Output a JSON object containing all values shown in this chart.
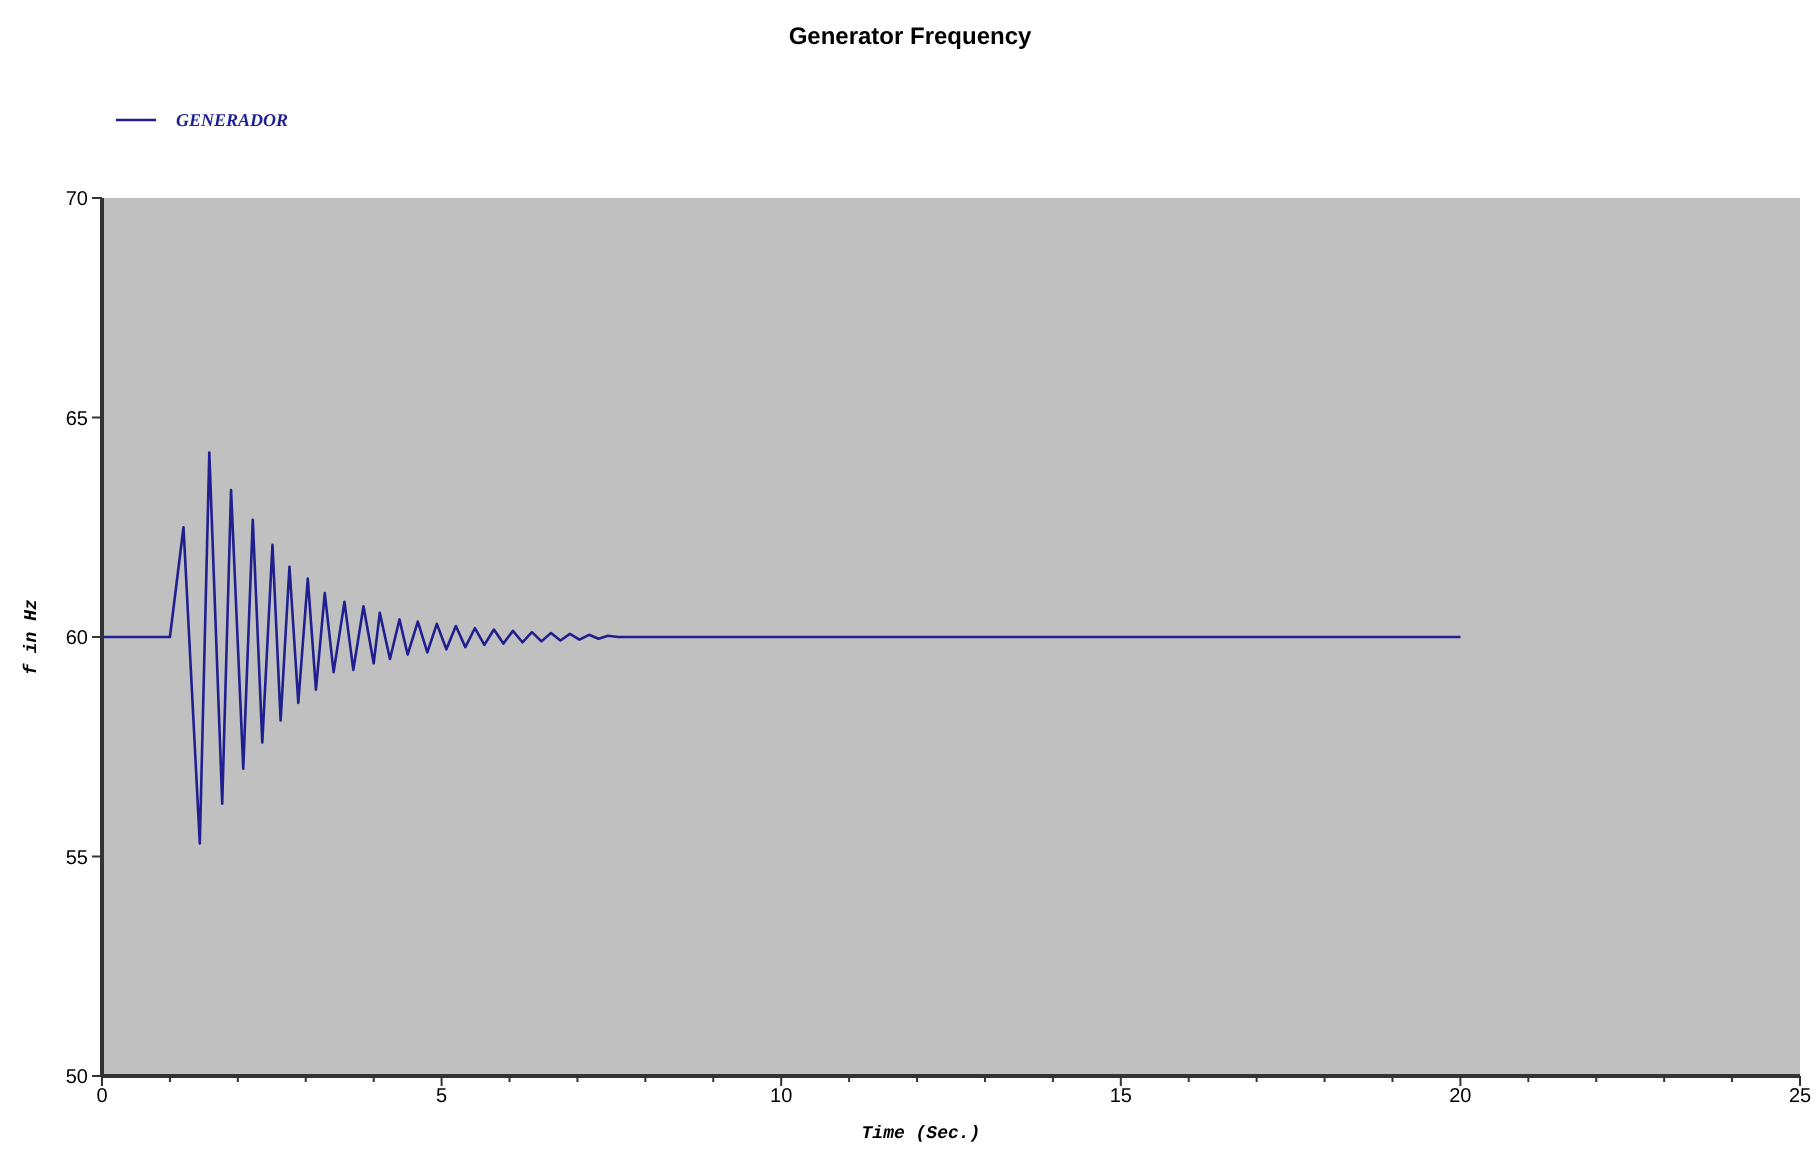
{
  "chart_data": {
    "type": "line",
    "title": "Generator Frequency",
    "xlabel": "Time  (Sec.)",
    "ylabel": "f in Hz",
    "xlim": [
      0,
      25
    ],
    "ylim": [
      50,
      70
    ],
    "xticks": [
      0,
      {
        "value": 1,
        "label": null
      },
      {
        "value": 2,
        "label": null
      },
      {
        "value": 3,
        "label": null
      },
      {
        "value": 4,
        "label": null
      },
      5,
      {
        "value": 6,
        "label": null
      },
      {
        "value": 7,
        "label": null
      },
      {
        "value": 8,
        "label": null
      },
      {
        "value": 9,
        "label": null
      },
      10,
      {
        "value": 11,
        "label": null
      },
      {
        "value": 12,
        "label": null
      },
      {
        "value": 13,
        "label": null
      },
      {
        "value": 14,
        "label": null
      },
      15,
      {
        "value": 16,
        "label": null
      },
      {
        "value": 17,
        "label": null
      },
      {
        "value": 18,
        "label": null
      },
      {
        "value": 19,
        "label": null
      },
      20,
      {
        "value": 21,
        "label": null
      },
      {
        "value": 22,
        "label": null
      },
      {
        "value": 23,
        "label": null
      },
      {
        "value": 24,
        "label": null
      },
      25
    ],
    "yticks": [
      50,
      55,
      60,
      65,
      70
    ],
    "grid": false,
    "legend": "top left",
    "marker": "none",
    "line_style": "solid",
    "series": [
      {
        "name": "GENERADOR",
        "color": "#1f1f8f",
        "x": [
          0,
          1.0,
          1.2,
          1.44,
          1.58,
          1.77,
          1.9,
          2.08,
          2.22,
          2.36,
          2.51,
          2.63,
          2.76,
          2.89,
          3.03,
          3.15,
          3.28,
          3.41,
          3.57,
          3.7,
          3.85,
          4.0,
          4.09,
          4.24,
          4.38,
          4.5,
          4.65,
          4.79,
          4.93,
          5.07,
          5.21,
          5.35,
          5.49,
          5.63,
          5.77,
          5.91,
          6.05,
          6.19,
          6.33,
          6.47,
          6.61,
          6.75,
          6.89,
          7.03,
          7.17,
          7.31,
          7.45,
          7.6,
          20
        ],
        "values": [
          60,
          60,
          62.5,
          55.3,
          64.2,
          56.2,
          63.35,
          57.0,
          62.67,
          57.6,
          62.1,
          58.1,
          61.6,
          58.5,
          61.33,
          58.8,
          61.0,
          59.2,
          60.8,
          59.25,
          60.7,
          59.4,
          60.55,
          59.5,
          60.4,
          59.6,
          60.35,
          59.65,
          60.3,
          59.72,
          60.25,
          59.77,
          60.2,
          59.82,
          60.17,
          59.85,
          60.14,
          59.88,
          60.11,
          59.9,
          60.09,
          59.92,
          60.07,
          59.94,
          60.05,
          59.96,
          60.03,
          60,
          60
        ]
      }
    ]
  }
}
